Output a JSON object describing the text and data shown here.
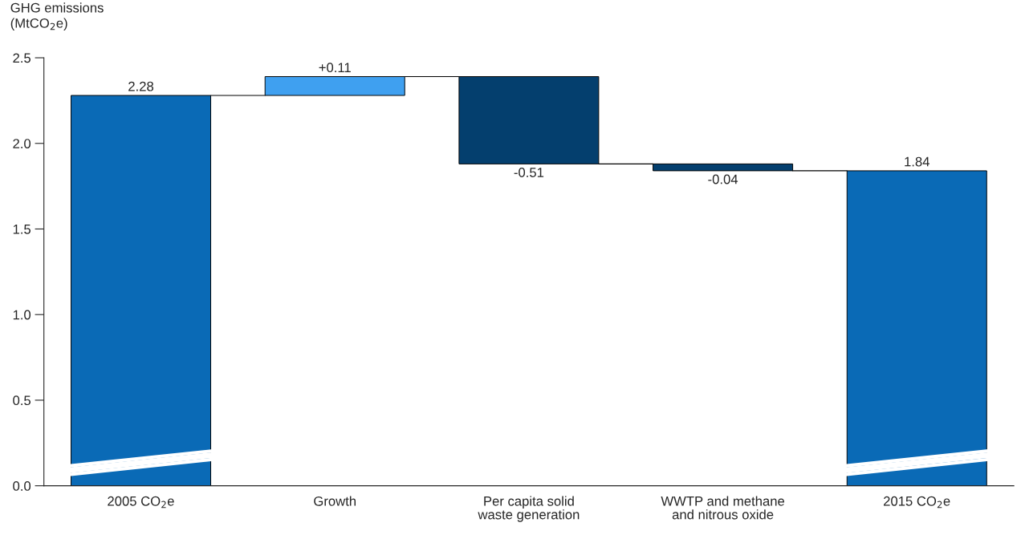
{
  "chart_data": {
    "type": "bar",
    "ylabel": "GHG emissions\n(MtCO$_{2}$e)",
    "categories": [
      "2005 CO$_{2}$e",
      "Growth",
      "Per capita solid\nwaste generation",
      "WWTP and methane\nand nitrous oxide",
      "2015 CO$_{2}$e"
    ],
    "values": [
      2.28,
      0.11,
      -0.51,
      -0.04,
      1.84
    ],
    "base": [
      0,
      2.28,
      2.39,
      1.88,
      0
    ],
    "colors": [
      "#0a6ab6",
      "#3fa0f0",
      "#043f6e",
      "#043f6e",
      "#0a6ab6"
    ],
    "value_labels": [
      "2.28",
      "+0.11",
      "-0.51",
      "-0.04",
      "1.84"
    ],
    "ylim": [
      0,
      2.5
    ],
    "yticks": [
      {
        "value": 0,
        "label": "0.0"
      },
      {
        "value": 0.5,
        "label": "0.5"
      },
      {
        "value": 1.0,
        "label": "1.0"
      },
      {
        "value": 1.5,
        "label": "1.5"
      },
      {
        "value": 2.0,
        "label": "2.0"
      },
      {
        "value": 2.5,
        "label": "2.5"
      }
    ],
    "grid": false,
    "legend": false
  }
}
